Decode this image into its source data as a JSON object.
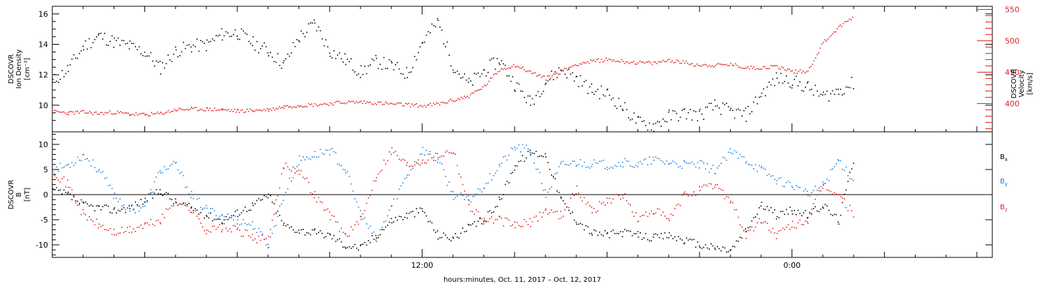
{
  "chart_data": [
    {
      "type": "scatter",
      "panel": "plasma",
      "ylabel_left": [
        "DSCOVR",
        "Ion Density",
        "[cm⁻³]"
      ],
      "ylabel_right": [
        "DSCOVR",
        "Velocity",
        "[km/s]"
      ],
      "ylim_left": [
        8.25,
        16.5
      ],
      "ylim_right": [
        355,
        555
      ],
      "yticks_left": [
        "10",
        "12",
        "14",
        "16"
      ],
      "yticks_right": [
        "400",
        "450",
        "500",
        "550"
      ],
      "series": [
        {
          "color": "#000000",
          "axis": "left",
          "hours": [
            0,
            0.5,
            1,
            1.5,
            2,
            2.5,
            3,
            3.5,
            4,
            4.5,
            5,
            5.5,
            6,
            6.5,
            7,
            7.5,
            8,
            8.5,
            9,
            9.5,
            10,
            10.5,
            11,
            11.5,
            12,
            12.5,
            13,
            13.5,
            14,
            14.5,
            15,
            15.5,
            16,
            16.5,
            17,
            17.5,
            18,
            18.5,
            19,
            19.5,
            20,
            20.5,
            21,
            21.5,
            22,
            22.5,
            23,
            23.5,
            24,
            24.5,
            25,
            25.5,
            26
          ],
          "values": [
            11.6,
            12.4,
            13.9,
            14.6,
            14.2,
            13.9,
            13.5,
            12.5,
            13.6,
            13.9,
            14.0,
            14.7,
            14.8,
            14.1,
            13.6,
            12.7,
            14.5,
            15.4,
            13.6,
            13.0,
            12.2,
            12.9,
            12.6,
            12.1,
            14.2,
            15.5,
            12.6,
            11.4,
            12.3,
            13.0,
            11.4,
            10.2,
            11.6,
            12.4,
            11.8,
            11.0,
            10.8,
            9.9,
            8.9,
            8.7,
            9.3,
            9.5,
            9.4,
            10.0,
            9.6,
            9.4,
            10.8,
            11.8,
            11.6,
            11.2,
            10.6,
            11.0,
            11.5
          ]
        },
        {
          "color": "#e21f1f",
          "axis": "right",
          "hours": [
            0,
            0.5,
            1,
            1.5,
            2,
            2.5,
            3,
            3.5,
            4,
            4.5,
            5,
            5.5,
            6,
            6.5,
            7,
            7.5,
            8,
            8.5,
            9,
            9.5,
            10,
            10.5,
            11,
            11.5,
            12,
            12.5,
            13,
            13.5,
            14,
            14.5,
            15,
            15.5,
            16,
            16.5,
            17,
            17.5,
            18,
            18.5,
            19,
            19.5,
            20,
            20.5,
            21,
            21.5,
            22,
            22.5,
            23,
            23.5,
            24,
            24.5,
            25,
            25.5,
            26
          ],
          "values": [
            388,
            386,
            387,
            385,
            387,
            384,
            383,
            385,
            391,
            392,
            392,
            391,
            389,
            390,
            391,
            396,
            398,
            399,
            401,
            403,
            403,
            402,
            400,
            399,
            397,
            400,
            406,
            413,
            428,
            455,
            462,
            451,
            441,
            452,
            464,
            468,
            471,
            468,
            466,
            465,
            470,
            466,
            462,
            462,
            463,
            458,
            458,
            460,
            452,
            452,
            498,
            522,
            540
          ]
        }
      ]
    },
    {
      "type": "scatter",
      "panel": "magnetic-field",
      "ylabel": [
        "DSCOVR",
        "B",
        "[nT]"
      ],
      "ylim": [
        -12.5,
        12.5
      ],
      "yticks": [
        "-10",
        "-5",
        "0",
        "5",
        "10"
      ],
      "xticks": [
        "12:00",
        "0:00"
      ],
      "xtick_hours": [
        12,
        24
      ],
      "xlim_hours": [
        0,
        30.5
      ],
      "xlabel": "hours:minutes, Oct. 11, 2017 – Oct. 12, 2017",
      "legend_placement": "right",
      "series": [
        {
          "name": "Bx",
          "color": "#000000",
          "hours": [
            0,
            0.5,
            1,
            1.5,
            2,
            2.5,
            3,
            3.5,
            4,
            4.5,
            5,
            5.5,
            6,
            6.5,
            7,
            7.5,
            8,
            8.5,
            9,
            9.5,
            10,
            10.5,
            11,
            11.5,
            12,
            12.5,
            13,
            13.5,
            14,
            14.5,
            15,
            15.5,
            16,
            16.5,
            17,
            17.5,
            18,
            18.5,
            19,
            19.5,
            20,
            20.5,
            21,
            21.5,
            22,
            22.5,
            23,
            23.5,
            24,
            24.5,
            25,
            25.5,
            26
          ],
          "values": [
            1,
            0,
            -2,
            -2.5,
            -3,
            -2.5,
            -1,
            1,
            -1.5,
            -2.5,
            -4,
            -5,
            -3.5,
            -2,
            0,
            -6,
            -7,
            -7.5,
            -8,
            -10,
            -10.5,
            -8,
            -5,
            -4,
            -3,
            -8,
            -8.5,
            -6.5,
            -5,
            -1,
            6,
            8.5,
            8,
            -1,
            -5,
            -7.5,
            -7.8,
            -7.5,
            -8,
            -8.5,
            -8,
            -9,
            -10,
            -10.5,
            -11,
            -7,
            -2,
            -4,
            -3,
            -4,
            -2,
            -5,
            7.5
          ]
        },
        {
          "name": "By",
          "color": "#1f82d8",
          "hours": [
            0,
            0.5,
            1,
            1.5,
            2,
            2.5,
            3,
            3.5,
            4,
            4.5,
            5,
            5.5,
            6,
            6.5,
            7,
            7.5,
            8,
            8.5,
            9,
            9.5,
            10,
            10.5,
            11,
            11.5,
            12,
            12.5,
            13,
            13.5,
            14,
            14.5,
            15,
            15.5,
            16,
            16.5,
            17,
            17.5,
            18,
            18.5,
            19,
            19.5,
            20,
            20.5,
            21,
            21.5,
            22,
            22.5,
            23,
            23.5,
            24,
            24.5,
            25,
            25.5,
            26
          ],
          "values": [
            5,
            6,
            8,
            5,
            0,
            -3,
            -2,
            5,
            6,
            0,
            -3,
            -4,
            -5,
            -6,
            -10,
            0,
            7,
            8,
            9,
            5,
            -4,
            -9,
            -2,
            4,
            9,
            7,
            0,
            -1,
            2,
            6,
            9.5,
            9,
            0,
            6,
            6.5,
            6.2,
            6,
            6.5,
            6,
            7,
            6.5,
            6,
            6,
            5,
            8.5,
            7,
            5,
            3,
            2,
            0,
            2,
            7,
            3
          ]
        },
        {
          "name": "Bz",
          "color": "#e21f1f",
          "hours": [
            0,
            0.5,
            1,
            1.5,
            2,
            2.5,
            3,
            3.5,
            4,
            4.5,
            5,
            5.5,
            6,
            6.5,
            7,
            7.5,
            8,
            8.5,
            9,
            9.5,
            10,
            10.5,
            11,
            11.5,
            12,
            12.5,
            13,
            13.5,
            14,
            14.5,
            15,
            15.5,
            16,
            16.5,
            17,
            17.5,
            18,
            18.5,
            19,
            19.5,
            20,
            20.5,
            21,
            21.5,
            22,
            22.5,
            23,
            23.5,
            24,
            24.5,
            25,
            25.5,
            26
          ],
          "values": [
            5,
            2,
            -4,
            -6,
            -7.5,
            -7,
            -6,
            -5,
            -1,
            -3,
            -7,
            -6.5,
            -7,
            -8.5,
            -9,
            6,
            5,
            0,
            -4,
            -8,
            -5,
            4,
            9,
            6,
            7,
            8,
            9,
            -2,
            -5,
            -5,
            -6,
            -5.5,
            -3,
            -4,
            1,
            -3,
            -1,
            0,
            -5,
            -3,
            -5,
            0,
            1,
            2,
            -1,
            -8,
            -5,
            -8,
            -6,
            -5,
            2,
            0,
            -4
          ]
        }
      ]
    }
  ],
  "legend": {
    "bx": {
      "base": "B",
      "sub": "x"
    },
    "by": {
      "base": "B",
      "sub": "y"
    },
    "bz": {
      "base": "B",
      "sub": "z"
    }
  },
  "colors": {
    "black": "#000000",
    "red": "#e21f1f",
    "blue": "#1f82d8"
  }
}
